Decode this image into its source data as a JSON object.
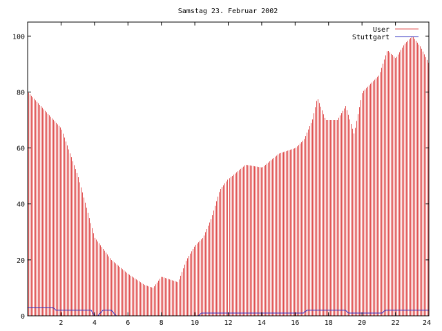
{
  "chart_data": {
    "type": "bar",
    "title": "Samstag 23. Februar 2002",
    "xlabel": "",
    "ylabel": "",
    "xlim": [
      0,
      24
    ],
    "ylim": [
      0,
      105
    ],
    "x_ticks": [
      "2",
      "4",
      "6",
      "8",
      "10",
      "12",
      "14",
      "16",
      "18",
      "20",
      "22",
      "24"
    ],
    "y_ticks": [
      "0",
      "20",
      "40",
      "60",
      "80",
      "100"
    ],
    "legend_position": "top-right",
    "grid": false,
    "colors": {
      "user": "#e05050",
      "stuttgart": "#3030c0",
      "axis": "#000000"
    },
    "series": [
      {
        "name": "User",
        "style": "impulses",
        "x": [
          0.0,
          2.0,
          3.0,
          4.0,
          5.0,
          6.0,
          7.0,
          7.5,
          8.0,
          9.0,
          9.5,
          10.0,
          10.5,
          11.0,
          11.5,
          12.0,
          13.0,
          14.0,
          15.0,
          16.0,
          16.5,
          17.0,
          17.3,
          17.8,
          18.5,
          19.0,
          19.5,
          20.0,
          21.0,
          21.5,
          22.0,
          22.5,
          23.0,
          23.5,
          24.0
        ],
        "y": [
          80,
          67,
          50,
          28,
          20,
          15,
          11,
          10,
          14,
          12,
          20,
          25,
          28,
          35,
          45,
          49,
          54,
          53,
          58,
          60,
          63,
          70,
          78,
          70,
          70,
          75,
          65,
          80,
          86,
          95,
          92,
          97,
          100,
          96,
          90
        ]
      },
      {
        "name": "Stuttgart",
        "style": "line",
        "x": [
          0.0,
          1.5,
          1.7,
          3.8,
          4.0,
          4.2,
          4.5,
          5.0,
          5.3,
          5.5,
          10.2,
          10.4,
          16.5,
          16.7,
          19.0,
          19.2,
          21.2,
          21.4,
          24.0
        ],
        "y": [
          3,
          3,
          2,
          2,
          0,
          0,
          2,
          2,
          0,
          0,
          0,
          1,
          1,
          2,
          2,
          1,
          1,
          2,
          2
        ]
      }
    ]
  }
}
